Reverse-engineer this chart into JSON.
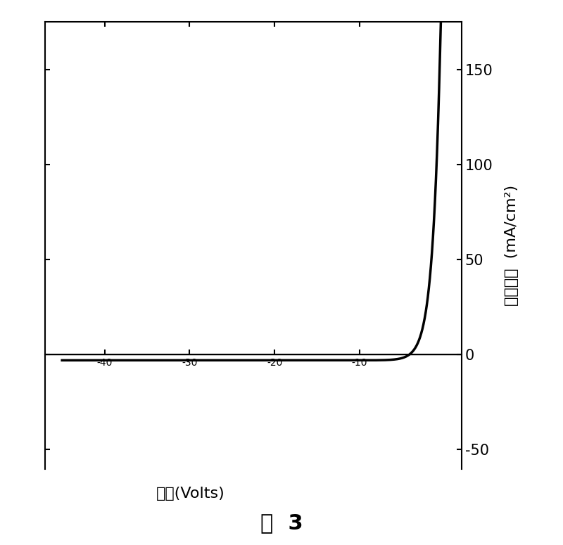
{
  "xlabel": "电压(Volts)",
  "ylabel": "电流密度  (mA/cm²)",
  "xlim": [
    -47,
    2
  ],
  "ylim": [
    -60,
    175
  ],
  "xticks": [
    -40,
    -30,
    -20,
    -10
  ],
  "yticks": [
    -50,
    0,
    50,
    100,
    150
  ],
  "caption": "图  3",
  "line_color": "#000000",
  "background_color": "#ffffff",
  "A": 1.2,
  "B": 1.1,
  "V0": -5.0,
  "C": -3.0
}
